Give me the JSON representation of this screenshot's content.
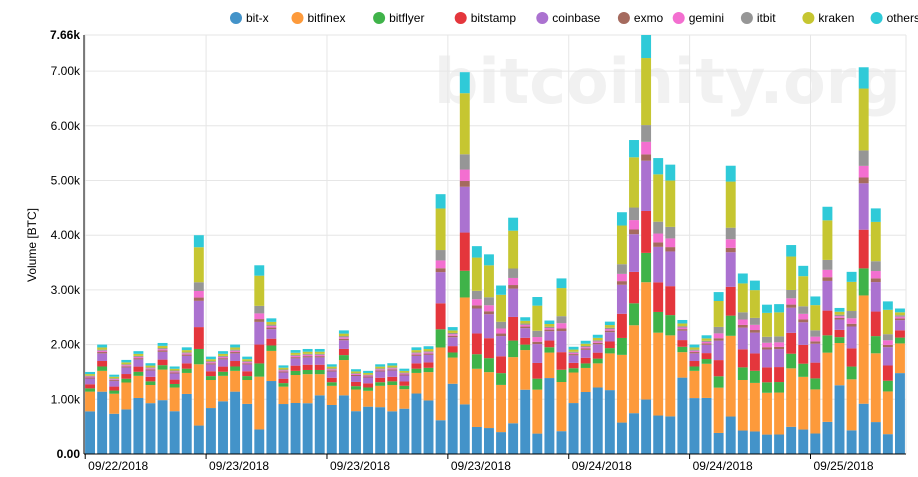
{
  "chart_data": {
    "type": "bar",
    "stacked": true,
    "title": "",
    "ylabel": "Volume [BTC]",
    "xlabel": "",
    "ylim": [
      0,
      7660
    ],
    "ytick_values": [
      0,
      1000,
      2000,
      3000,
      4000,
      5000,
      6000,
      7000,
      7660
    ],
    "ytick_labels": [
      "0.00",
      "1.00k",
      "2.00k",
      "3.00k",
      "4.00k",
      "5.00k",
      "6.00k",
      "7.00k",
      "7.66k"
    ],
    "xtick_labels": [
      "09/22/2018",
      "09/23/2018",
      "09/23/2018",
      "09/23/2018",
      "09/24/2018",
      "09/24/2018",
      "09/25/2018",
      "09/25/2018"
    ],
    "xtick_bar_index": [
      0,
      10,
      20,
      30,
      40,
      50,
      60,
      70
    ],
    "legend_position": "top-right",
    "grid": true,
    "watermark": "bitcoinity.org",
    "series": [
      {
        "name": "bit-x",
        "color": "#4393c9"
      },
      {
        "name": "bitfinex",
        "color": "#fd9a3b"
      },
      {
        "name": "bitflyer",
        "color": "#3fb349"
      },
      {
        "name": "bitstamp",
        "color": "#e4363c"
      },
      {
        "name": "coinbase",
        "color": "#ab72d0"
      },
      {
        "name": "exmo",
        "color": "#a56a5e"
      },
      {
        "name": "gemini",
        "color": "#f36fd0"
      },
      {
        "name": "itbit",
        "color": "#969696"
      },
      {
        "name": "kraken",
        "color": "#c6c631"
      },
      {
        "name": "others",
        "color": "#2fcad8"
      }
    ],
    "totals": [
      1500,
      2000,
      1450,
      1720,
      1880,
      1660,
      2030,
      1600,
      1950,
      4000,
      1780,
      1880,
      2000,
      1780,
      3450,
      2480,
      1620,
      1900,
      1920,
      1920,
      1640,
      2260,
      1550,
      1520,
      1640,
      1660,
      1560,
      1950,
      1970,
      4750,
      2320,
      6980,
      3800,
      3650,
      3080,
      4320,
      2500,
      2870,
      2440,
      3210,
      1960,
      2070,
      2180,
      2420,
      4420,
      5740,
      7660,
      5410,
      5290,
      2450,
      2000,
      2170,
      2960,
      5270,
      3300,
      3170,
      2730,
      2740,
      3820,
      3440,
      2880,
      4520,
      2670,
      3330,
      7070,
      4490,
      2790,
      2660
    ]
  }
}
